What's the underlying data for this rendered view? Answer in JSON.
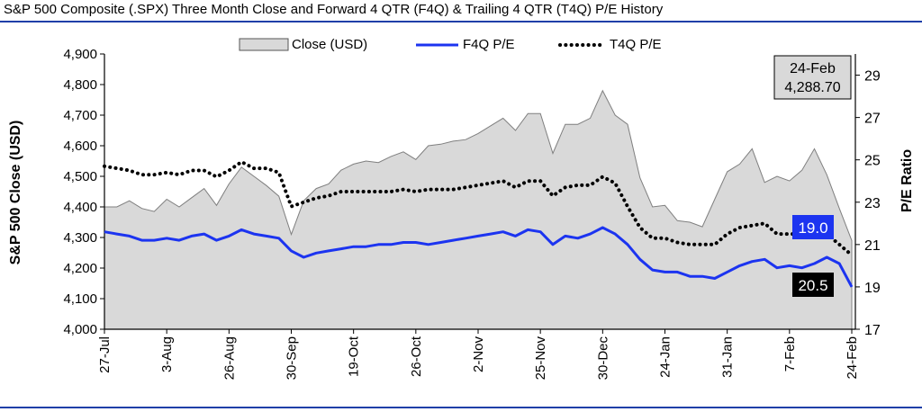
{
  "title": "S&P 500 Composite (.SPX) Three Month Close and Forward 4 QTR (F4Q) & Trailing 4 QTR (T4Q) P/E History",
  "chart_data": {
    "type": "area",
    "title": "S&P 500 Composite (.SPX) Three Month Close and Forward 4 QTR (F4Q) & Trailing 4 QTR (T4Q) P/E History",
    "ylabel": "S&P 500 Close (USD)",
    "y2label": "P/E Ratio",
    "ylim": [
      4000,
      4900
    ],
    "y2lim": [
      17,
      30
    ],
    "yticks": [
      "4,000",
      "4,100",
      "4,200",
      "4,300",
      "4,400",
      "4,500",
      "4,600",
      "4,700",
      "4,800",
      "4,900"
    ],
    "y2ticks": [
      "17",
      "19",
      "21",
      "23",
      "25",
      "27",
      "29"
    ],
    "xticks": [
      "27-Jul",
      "3-Aug",
      "26-Aug",
      "30-Sep",
      "19-Oct",
      "26-Oct",
      "2-Nov",
      "25-Nov",
      "30-Dec",
      "24-Jan",
      "31-Jan",
      "7-Feb",
      "24-Feb"
    ],
    "legend": [
      "Close (USD)",
      "F4Q P/E",
      "T4Q P/E"
    ],
    "legend_position": "top",
    "series": [
      {
        "name": "Close (USD)",
        "axis": "left",
        "style": "area",
        "color": "#d9d9d9",
        "values": [
          4400,
          4400,
          4420,
          4395,
          4385,
          4425,
          4400,
          4430,
          4460,
          4405,
          4475,
          4530,
          4500,
          4470,
          4435,
          4310,
          4420,
          4460,
          4475,
          4520,
          4540,
          4550,
          4545,
          4565,
          4580,
          4555,
          4600,
          4605,
          4615,
          4620,
          4640,
          4665,
          4690,
          4650,
          4705,
          4705,
          4575,
          4670,
          4670,
          4690,
          4780,
          4700,
          4670,
          4495,
          4400,
          4405,
          4355,
          4350,
          4335,
          4425,
          4515,
          4540,
          4590,
          4480,
          4500,
          4485,
          4520,
          4590,
          4505,
          4395,
          4290
        ]
      },
      {
        "name": "F4Q P/E",
        "axis": "right",
        "style": "line",
        "color": "#1c34f0",
        "values": [
          21.6,
          21.5,
          21.4,
          21.2,
          21.2,
          21.3,
          21.2,
          21.4,
          21.5,
          21.2,
          21.4,
          21.7,
          21.5,
          21.4,
          21.3,
          20.7,
          20.4,
          20.6,
          20.7,
          20.8,
          20.9,
          20.9,
          21.0,
          21.0,
          21.1,
          21.1,
          21.0,
          21.1,
          21.2,
          21.3,
          21.4,
          21.5,
          21.6,
          21.4,
          21.7,
          21.6,
          21.0,
          21.4,
          21.3,
          21.5,
          21.8,
          21.5,
          21.0,
          20.3,
          19.8,
          19.7,
          19.7,
          19.5,
          19.5,
          19.4,
          19.7,
          20.0,
          20.2,
          20.3,
          19.9,
          20.0,
          19.9,
          20.1,
          20.4,
          20.1,
          19.0
        ]
      },
      {
        "name": "T4Q P/E",
        "axis": "right",
        "style": "dotted",
        "color": "#000000",
        "values": [
          24.7,
          24.6,
          24.5,
          24.3,
          24.3,
          24.4,
          24.3,
          24.5,
          24.5,
          24.2,
          24.5,
          24.9,
          24.6,
          24.6,
          24.4,
          22.8,
          23.0,
          23.2,
          23.3,
          23.5,
          23.5,
          23.5,
          23.5,
          23.5,
          23.6,
          23.5,
          23.6,
          23.6,
          23.6,
          23.7,
          23.8,
          23.9,
          24.0,
          23.7,
          24.0,
          24.0,
          23.3,
          23.7,
          23.8,
          23.8,
          24.2,
          23.9,
          22.8,
          21.8,
          21.3,
          21.3,
          21.1,
          21.0,
          21.0,
          21.0,
          21.5,
          21.8,
          21.9,
          22.0,
          21.5,
          21.5,
          21.5,
          21.5,
          21.5,
          21.0,
          20.5
        ]
      }
    ],
    "annotations": {
      "last_date": "24-Feb",
      "last_close": "4,288.70",
      "f4q_label": "19.0",
      "t4q_label": "20.5"
    }
  }
}
